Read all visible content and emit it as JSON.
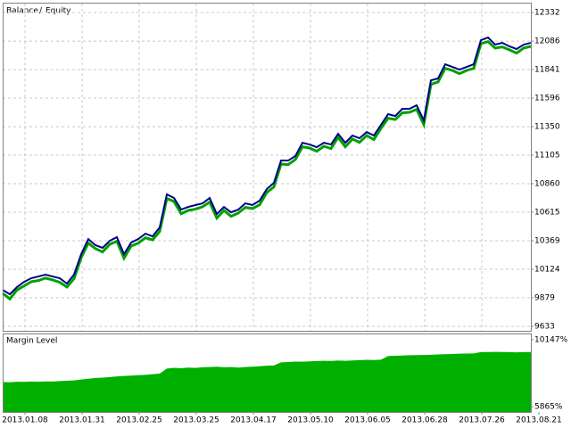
{
  "chart_data": [
    {
      "type": "line",
      "legend_separator": "/",
      "series": [
        {
          "name": "Balance",
          "color": "#00008b",
          "values": [
            9947,
            9909,
            9970,
            10016,
            10047,
            10062,
            10078,
            10062,
            10047,
            10001,
            10078,
            10254,
            10384,
            10331,
            10308,
            10369,
            10400,
            10254,
            10354,
            10384,
            10430,
            10407,
            10484,
            10768,
            10737,
            10637,
            10660,
            10676,
            10691,
            10737,
            10599,
            10660,
            10614,
            10637,
            10691,
            10676,
            10714,
            10814,
            10867,
            11059,
            11059,
            11097,
            11212,
            11197,
            11174,
            11212,
            11197,
            11289,
            11212,
            11274,
            11251,
            11304,
            11274,
            11366,
            11458,
            11442,
            11504,
            11504,
            11534,
            11404,
            11749,
            11765,
            11887,
            11864,
            11841,
            11864,
            11887,
            12094,
            12117,
            12056,
            12071,
            12041,
            12018,
            12056,
            12071
          ]
        },
        {
          "name": "Equity",
          "color": "#00a000",
          "values": [
            9917,
            9869,
            9945,
            9981,
            10017,
            10027,
            10048,
            10032,
            10012,
            9971,
            10043,
            10224,
            10349,
            10301,
            10273,
            10339,
            10365,
            10219,
            10324,
            10349,
            10395,
            10377,
            10449,
            10733,
            10707,
            10602,
            10630,
            10641,
            10661,
            10702,
            10564,
            10630,
            10579,
            10607,
            10656,
            10646,
            10679,
            10784,
            10832,
            11029,
            11024,
            11067,
            11177,
            11167,
            11139,
            11182,
            11162,
            11259,
            11177,
            11244,
            11216,
            11274,
            11239,
            11336,
            11423,
            11412,
            11469,
            11474,
            11499,
            11369,
            11714,
            11735,
            11852,
            11834,
            11806,
            11834,
            11852,
            12064,
            12082,
            12026,
            12036,
            12011,
            11983,
            12026,
            12041
          ]
        }
      ],
      "xlim": [
        0,
        74
      ],
      "ylim": [
        9587,
        12409
      ],
      "yticks": [
        12332,
        12086,
        11841,
        11596,
        11350,
        11105,
        10860,
        10615,
        10369,
        10124,
        9879,
        9633
      ],
      "grid": true
    },
    {
      "type": "area",
      "title": "Margin Level",
      "color": "#00b000",
      "values": [
        7440,
        7420,
        7460,
        7450,
        7470,
        7460,
        7480,
        7470,
        7500,
        7520,
        7540,
        7600,
        7650,
        7700,
        7720,
        7760,
        7800,
        7830,
        7850,
        7880,
        7900,
        7940,
        7980,
        8300,
        8350,
        8320,
        8360,
        8340,
        8380,
        8400,
        8420,
        8380,
        8400,
        8360,
        8400,
        8420,
        8450,
        8480,
        8500,
        8700,
        8720,
        8750,
        8740,
        8760,
        8780,
        8800,
        8790,
        8810,
        8800,
        8820,
        8840,
        8860,
        8850,
        8870,
        9100,
        9120,
        9130,
        9150,
        9160,
        9170,
        9180,
        9200,
        9220,
        9230,
        9250,
        9260,
        9270,
        9350,
        9360,
        9370,
        9360,
        9350,
        9340,
        9350,
        9360
      ],
      "xlim": [
        0,
        74
      ],
      "xticks": [
        {
          "value": 3.125,
          "label": "2013.01.08"
        },
        {
          "value": 11.125,
          "label": "2013.01.31"
        },
        {
          "value": 19.125,
          "label": "2013.02.25"
        },
        {
          "value": 27.125,
          "label": "2013.03.25"
        },
        {
          "value": 35.125,
          "label": "2013.04.17"
        },
        {
          "value": 43.125,
          "label": "2013.05.10"
        },
        {
          "value": 51.125,
          "label": "2013.06.05"
        },
        {
          "value": 59.125,
          "label": "2013.06.28"
        },
        {
          "value": 67.125,
          "label": "2013.07.26"
        },
        {
          "value": 75.125,
          "label": "2013.08.21"
        }
      ],
      "ylim": [
        5527,
        10485
      ],
      "yticks": [
        {
          "value": 10147,
          "label": "10147%"
        },
        {
          "value": 5865,
          "label": "5865%"
        }
      ],
      "grid": false
    }
  ]
}
